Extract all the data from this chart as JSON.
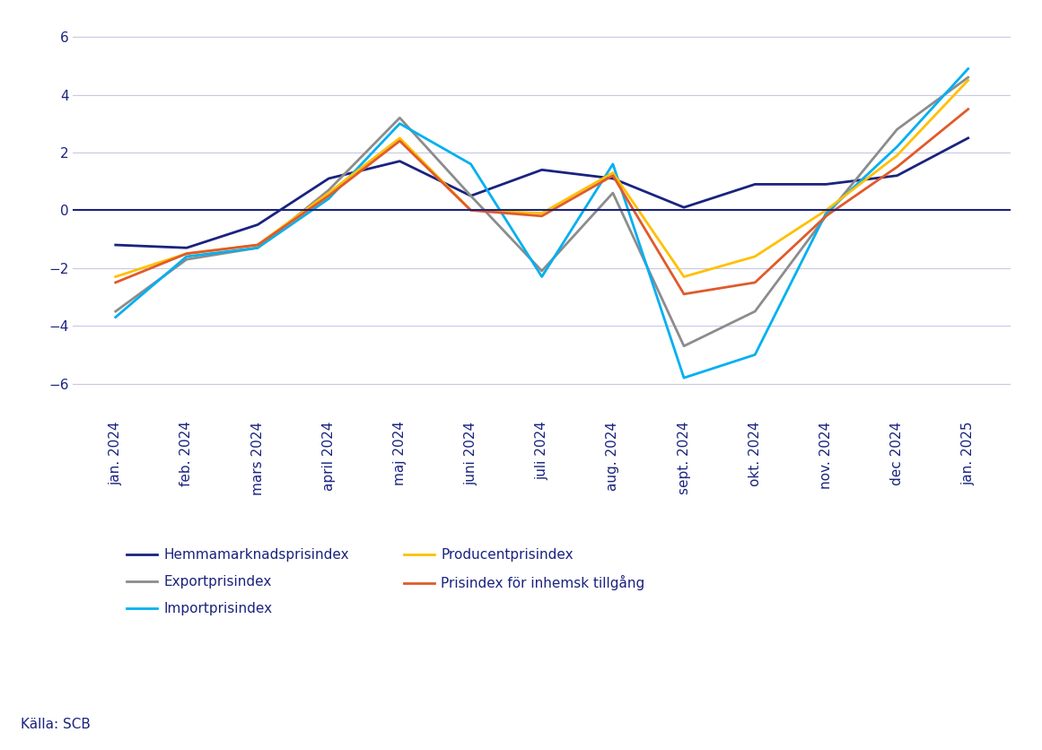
{
  "source": "Källa: SCB",
  "x_labels": [
    "jan. 2024",
    "feb. 2024",
    "mars 2024",
    "april 2024",
    "maj 2024",
    "juni 2024",
    "juli 2024",
    "aug. 2024",
    "sept. 2024",
    "okt. 2024",
    "nov. 2024",
    "dec 2024",
    "jan. 2025"
  ],
  "series": {
    "Hemmamarknadsprisindex": {
      "color": "#1a237e",
      "linewidth": 2.0,
      "values": [
        -1.2,
        -1.3,
        -0.5,
        1.1,
        1.7,
        0.5,
        1.4,
        1.1,
        0.1,
        0.9,
        0.9,
        1.2,
        2.5
      ]
    },
    "Exportprisindex": {
      "color": "#8c8c8c",
      "linewidth": 2.0,
      "values": [
        -3.5,
        -1.7,
        -1.3,
        0.7,
        3.2,
        0.5,
        -2.1,
        0.6,
        -4.7,
        -3.5,
        -0.2,
        2.8,
        4.6
      ]
    },
    "Importprisindex": {
      "color": "#00b0f0",
      "linewidth": 2.0,
      "values": [
        -3.7,
        -1.6,
        -1.3,
        0.4,
        3.0,
        1.6,
        -2.3,
        1.6,
        -5.8,
        -5.0,
        -0.1,
        2.2,
        4.9
      ]
    },
    "Producentprisindex": {
      "color": "#ffc000",
      "linewidth": 2.0,
      "values": [
        -2.3,
        -1.5,
        -1.2,
        0.6,
        2.5,
        0.0,
        -0.1,
        1.3,
        -2.3,
        -1.6,
        0.0,
        1.9,
        4.5
      ]
    },
    "Prisindex för inhemsk tillgång": {
      "color": "#e05a2b",
      "linewidth": 2.0,
      "values": [
        -2.5,
        -1.5,
        -1.2,
        0.5,
        2.4,
        0.0,
        -0.2,
        1.2,
        -2.9,
        -2.5,
        -0.2,
        1.5,
        3.5
      ]
    }
  },
  "ylim": [
    -7,
    6.5
  ],
  "yticks": [
    -6,
    -4,
    -2,
    0,
    2,
    4,
    6
  ],
  "background_color": "#ffffff",
  "grid_color": "#c8c8e8",
  "legend_col1": [
    "Hemmamarknadsprisindex",
    "Importprisindex",
    "Prisindex för inhemsk tillgång"
  ],
  "legend_col2": [
    "Exportprisindex",
    "Producentprisindex"
  ],
  "axis_color": "#1a237e",
  "tick_color": "#1a237e",
  "label_fontsize": 11,
  "tick_fontsize": 11
}
